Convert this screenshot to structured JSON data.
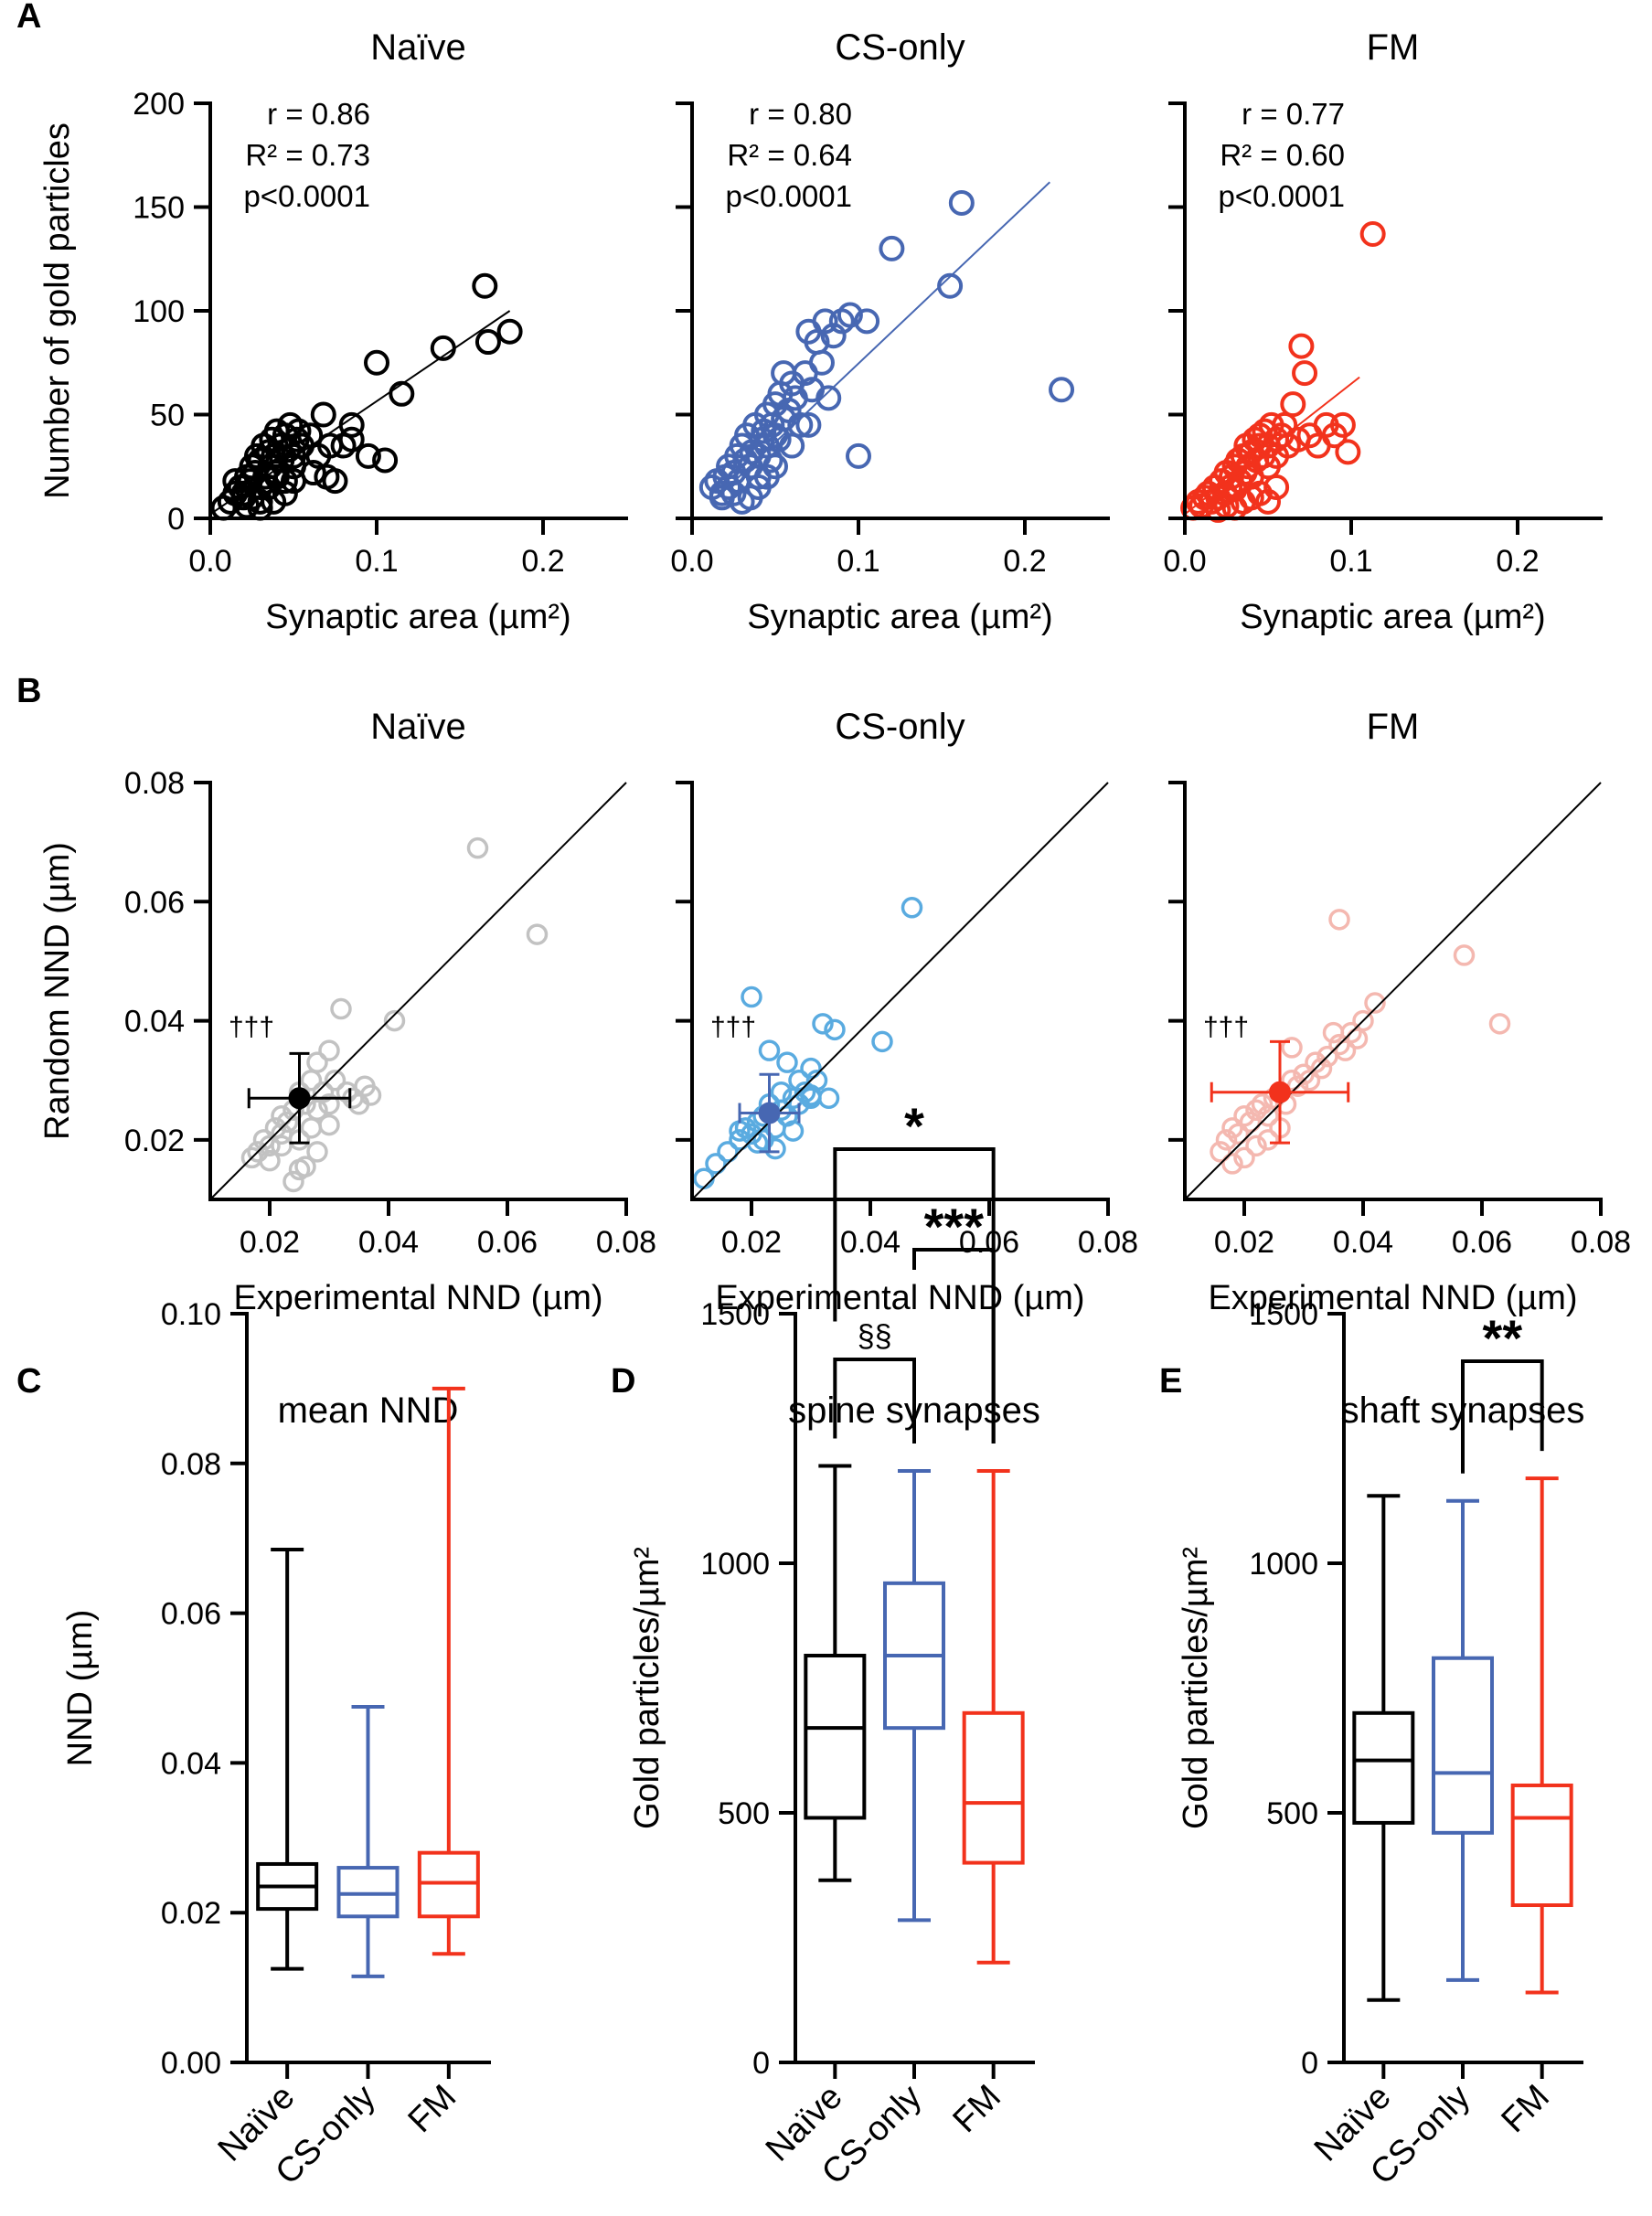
{
  "figure": {
    "panel_letters": [
      "A",
      "B",
      "C",
      "D",
      "E"
    ],
    "colors": {
      "naive": "#000000",
      "cs_only": "#4767b2",
      "fm": "#f2321c",
      "naive_light": "#c2c2c2",
      "cs_light": "#5aabe0",
      "fm_light": "#f4b8b0"
    }
  },
  "chart_data": [
    {
      "panel": "A",
      "type": "scatter",
      "title": "Naïve",
      "group": "naive",
      "xlabel": "Synaptic area (µm²)",
      "ylabel": "Number of gold particles",
      "xlim": [
        0,
        0.25
      ],
      "ylim": [
        0,
        200
      ],
      "xticks": [
        0.0,
        0.1,
        0.2
      ],
      "xtick_labels": [
        "0.0",
        "0.1",
        "0.2"
      ],
      "yticks": [
        0,
        50,
        100,
        150,
        200
      ],
      "ytick_labels": [
        "0",
        "50",
        "100",
        "150",
        "200"
      ],
      "show_ytick_labels": true,
      "stats": [
        "r = 0.86",
        "R² = 0.73",
        "p<0.0001"
      ],
      "fit": {
        "x": [
          0.0,
          0.18
        ],
        "y": [
          2,
          100
        ]
      },
      "points": {
        "x": [
          0.008,
          0.012,
          0.015,
          0.018,
          0.02,
          0.022,
          0.024,
          0.025,
          0.027,
          0.028,
          0.03,
          0.03,
          0.032,
          0.033,
          0.035,
          0.036,
          0.037,
          0.038,
          0.04,
          0.04,
          0.042,
          0.043,
          0.045,
          0.045,
          0.047,
          0.048,
          0.05,
          0.05,
          0.052,
          0.053,
          0.055,
          0.02,
          0.025,
          0.03,
          0.035,
          0.04,
          0.045,
          0.05,
          0.06,
          0.062,
          0.065,
          0.068,
          0.07,
          0.072,
          0.075,
          0.08,
          0.085,
          0.085,
          0.095,
          0.1,
          0.105,
          0.115,
          0.14,
          0.165,
          0.167,
          0.18,
          0.03,
          0.038,
          0.015,
          0.022
        ],
        "y": [
          5,
          8,
          12,
          15,
          10,
          20,
          18,
          25,
          22,
          30,
          15,
          28,
          35,
          20,
          32,
          25,
          38,
          30,
          42,
          22,
          35,
          28,
          40,
          18,
          33,
          45,
          30,
          25,
          38,
          42,
          35,
          12,
          10,
          8,
          15,
          20,
          12,
          18,
          40,
          22,
          30,
          50,
          20,
          35,
          18,
          35,
          38,
          45,
          30,
          75,
          28,
          60,
          82,
          112,
          85,
          90,
          5,
          8,
          18,
          6
        ]
      }
    },
    {
      "panel": "A",
      "type": "scatter",
      "title": "CS-only",
      "group": "cs_only",
      "xlabel": "Synaptic area (µm²)",
      "ylabel": "",
      "xlim": [
        0,
        0.25
      ],
      "ylim": [
        0,
        200
      ],
      "xticks": [
        0.0,
        0.1,
        0.2
      ],
      "xtick_labels": [
        "0.0",
        "0.1",
        "0.2"
      ],
      "yticks": [
        0,
        50,
        100,
        150,
        200
      ],
      "ytick_labels": [
        "0",
        "50",
        "100",
        "150",
        "200"
      ],
      "show_ytick_labels": false,
      "stats": [
        "r = 0.80",
        "R² = 0.64",
        "p<0.0001"
      ],
      "fit": {
        "x": [
          0.015,
          0.215
        ],
        "y": [
          10,
          162
        ]
      },
      "points": {
        "x": [
          0.012,
          0.015,
          0.018,
          0.02,
          0.022,
          0.025,
          0.027,
          0.028,
          0.03,
          0.032,
          0.033,
          0.035,
          0.036,
          0.038,
          0.04,
          0.04,
          0.042,
          0.043,
          0.045,
          0.045,
          0.047,
          0.048,
          0.05,
          0.05,
          0.052,
          0.053,
          0.055,
          0.055,
          0.058,
          0.06,
          0.062,
          0.065,
          0.068,
          0.07,
          0.072,
          0.075,
          0.078,
          0.08,
          0.082,
          0.085,
          0.09,
          0.095,
          0.1,
          0.105,
          0.12,
          0.155,
          0.162,
          0.222,
          0.018,
          0.022,
          0.025,
          0.03,
          0.035,
          0.04,
          0.045,
          0.05,
          0.06,
          0.07
        ],
        "y": [
          15,
          18,
          12,
          20,
          25,
          22,
          30,
          18,
          35,
          28,
          40,
          25,
          32,
          45,
          30,
          20,
          38,
          42,
          35,
          50,
          28,
          45,
          40,
          55,
          38,
          60,
          48,
          70,
          52,
          65,
          58,
          45,
          70,
          90,
          62,
          85,
          75,
          95,
          58,
          88,
          95,
          98,
          30,
          95,
          130,
          112,
          152,
          62,
          10,
          15,
          12,
          8,
          10,
          15,
          20,
          25,
          35,
          45
        ]
      }
    },
    {
      "panel": "A",
      "type": "scatter",
      "title": "FM",
      "group": "fm",
      "xlabel": "Synaptic area (µm²)",
      "ylabel": "",
      "xlim": [
        0,
        0.25
      ],
      "ylim": [
        0,
        200
      ],
      "xticks": [
        0.0,
        0.1,
        0.2
      ],
      "xtick_labels": [
        "0.0",
        "0.1",
        "0.2"
      ],
      "yticks": [
        0,
        50,
        100,
        150,
        200
      ],
      "ytick_labels": [
        "0",
        "50",
        "100",
        "150",
        "200"
      ],
      "show_ytick_labels": false,
      "stats": [
        "r = 0.77",
        "R² = 0.60",
        "p<0.0001"
      ],
      "fit": {
        "x": [
          0.0,
          0.105
        ],
        "y": [
          2,
          68
        ]
      },
      "points": {
        "x": [
          0.005,
          0.008,
          0.01,
          0.012,
          0.014,
          0.016,
          0.018,
          0.02,
          0.022,
          0.024,
          0.025,
          0.027,
          0.028,
          0.03,
          0.03,
          0.032,
          0.033,
          0.035,
          0.036,
          0.037,
          0.038,
          0.04,
          0.04,
          0.042,
          0.043,
          0.045,
          0.045,
          0.047,
          0.048,
          0.05,
          0.05,
          0.052,
          0.055,
          0.055,
          0.058,
          0.06,
          0.062,
          0.065,
          0.068,
          0.07,
          0.072,
          0.075,
          0.08,
          0.085,
          0.09,
          0.095,
          0.098,
          0.113,
          0.02,
          0.025,
          0.03,
          0.035,
          0.04,
          0.045,
          0.05,
          0.055
        ],
        "y": [
          5,
          8,
          6,
          10,
          12,
          8,
          15,
          10,
          18,
          12,
          22,
          15,
          20,
          25,
          14,
          28,
          18,
          30,
          22,
          35,
          25,
          32,
          20,
          38,
          28,
          35,
          40,
          30,
          42,
          35,
          25,
          45,
          38,
          30,
          40,
          45,
          35,
          55,
          38,
          83,
          70,
          40,
          35,
          45,
          40,
          45,
          32,
          137,
          4,
          6,
          5,
          8,
          10,
          12,
          8,
          15
        ]
      }
    },
    {
      "panel": "B",
      "type": "scatter",
      "title": "Naïve",
      "group": "naive",
      "xlabel": "Experimental NND (µm)",
      "ylabel": "Random NND (µm)",
      "xlim": [
        0.01,
        0.08
      ],
      "ylim": [
        0.01,
        0.08
      ],
      "xticks": [
        0.02,
        0.04,
        0.06,
        0.08
      ],
      "xtick_labels": [
        "0.02",
        "0.04",
        "0.06",
        "0.08"
      ],
      "yticks": [
        0.02,
        0.04,
        0.06,
        0.08
      ],
      "ytick_labels": [
        "0.02",
        "0.04",
        "0.06",
        "0.08"
      ],
      "show_ytick_labels": true,
      "dagger": "†††",
      "mean": {
        "x": 0.025,
        "y": 0.027,
        "xerr": 0.0085,
        "yerr": 0.0075
      },
      "identity_line": {
        "x": [
          0.01,
          0.08
        ],
        "y": [
          0.01,
          0.08
        ]
      },
      "points": {
        "x": [
          0.017,
          0.018,
          0.019,
          0.02,
          0.021,
          0.022,
          0.022,
          0.023,
          0.024,
          0.025,
          0.025,
          0.026,
          0.027,
          0.027,
          0.028,
          0.028,
          0.029,
          0.03,
          0.03,
          0.031,
          0.032,
          0.033,
          0.034,
          0.035,
          0.036,
          0.037,
          0.041,
          0.055,
          0.065,
          0.024,
          0.026,
          0.028,
          0.02,
          0.022,
          0.025,
          0.03
        ],
        "y": [
          0.017,
          0.018,
          0.02,
          0.019,
          0.022,
          0.021,
          0.024,
          0.023,
          0.025,
          0.02,
          0.028,
          0.026,
          0.022,
          0.03,
          0.025,
          0.033,
          0.028,
          0.026,
          0.035,
          0.03,
          0.042,
          0.028,
          0.027,
          0.026,
          0.029,
          0.0275,
          0.04,
          0.069,
          0.0545,
          0.013,
          0.0155,
          0.018,
          0.0165,
          0.019,
          0.015,
          0.0225
        ]
      }
    },
    {
      "panel": "B",
      "type": "scatter",
      "title": "CS-only",
      "group": "cs_only",
      "xlabel": "Experimental NND (µm)",
      "ylabel": "",
      "xlim": [
        0.01,
        0.08
      ],
      "ylim": [
        0.01,
        0.08
      ],
      "xticks": [
        0.02,
        0.04,
        0.06,
        0.08
      ],
      "xtick_labels": [
        "0.02",
        "0.04",
        "0.06",
        "0.08"
      ],
      "yticks": [
        0.02,
        0.04,
        0.06,
        0.08
      ],
      "ytick_labels": [
        "0.02",
        "0.04",
        "0.06",
        "0.08"
      ],
      "show_ytick_labels": false,
      "dagger": "†††",
      "mean": {
        "x": 0.023,
        "y": 0.0245,
        "xerr": 0.005,
        "yerr": 0.0065
      },
      "identity_line": {
        "x": [
          0.01,
          0.08
        ],
        "y": [
          0.01,
          0.08
        ]
      },
      "points": {
        "x": [
          0.012,
          0.014,
          0.016,
          0.018,
          0.019,
          0.02,
          0.021,
          0.022,
          0.022,
          0.023,
          0.024,
          0.025,
          0.025,
          0.026,
          0.027,
          0.028,
          0.028,
          0.029,
          0.03,
          0.03,
          0.031,
          0.032,
          0.033,
          0.034,
          0.042,
          0.047,
          0.02,
          0.023,
          0.026,
          0.018,
          0.021,
          0.024,
          0.027,
          0.03
        ],
        "y": [
          0.0135,
          0.016,
          0.018,
          0.02,
          0.022,
          0.021,
          0.023,
          0.024,
          0.02,
          0.026,
          0.022,
          0.025,
          0.028,
          0.024,
          0.027,
          0.026,
          0.03,
          0.028,
          0.027,
          0.032,
          0.03,
          0.0395,
          0.027,
          0.0385,
          0.0365,
          0.059,
          0.044,
          0.035,
          0.033,
          0.0215,
          0.0195,
          0.0185,
          0.0215,
          0.0275
        ]
      }
    },
    {
      "panel": "B",
      "type": "scatter",
      "title": "FM",
      "group": "fm",
      "xlabel": "Experimental NND (µm)",
      "ylabel": "",
      "xlim": [
        0.01,
        0.08
      ],
      "ylim": [
        0.01,
        0.08
      ],
      "xticks": [
        0.02,
        0.04,
        0.06,
        0.08
      ],
      "xtick_labels": [
        "0.02",
        "0.04",
        "0.06",
        "0.08"
      ],
      "yticks": [
        0.02,
        0.04,
        0.06,
        0.08
      ],
      "ytick_labels": [
        "0.02",
        "0.04",
        "0.06",
        "0.08"
      ],
      "show_ytick_labels": false,
      "dagger": "†††",
      "mean": {
        "x": 0.026,
        "y": 0.028,
        "xerr": 0.0115,
        "yerr": 0.0085
      },
      "identity_line": {
        "x": [
          0.01,
          0.08
        ],
        "y": [
          0.01,
          0.08
        ]
      },
      "points": {
        "x": [
          0.016,
          0.017,
          0.018,
          0.019,
          0.02,
          0.021,
          0.022,
          0.023,
          0.024,
          0.025,
          0.026,
          0.027,
          0.028,
          0.029,
          0.03,
          0.031,
          0.032,
          0.033,
          0.034,
          0.035,
          0.036,
          0.037,
          0.038,
          0.039,
          0.04,
          0.042,
          0.036,
          0.057,
          0.063,
          0.018,
          0.02,
          0.022,
          0.024,
          0.026,
          0.028
        ],
        "y": [
          0.018,
          0.02,
          0.022,
          0.021,
          0.024,
          0.023,
          0.025,
          0.026,
          0.024,
          0.027,
          0.028,
          0.026,
          0.03,
          0.029,
          0.031,
          0.03,
          0.033,
          0.032,
          0.034,
          0.038,
          0.036,
          0.035,
          0.038,
          0.037,
          0.04,
          0.043,
          0.057,
          0.051,
          0.0395,
          0.016,
          0.017,
          0.019,
          0.02,
          0.022,
          0.0355
        ]
      }
    },
    {
      "panel": "C",
      "type": "box",
      "title": "mean NND",
      "ylabel": "NND (µm)",
      "ylim": [
        0,
        0.1
      ],
      "yticks": [
        0,
        0.02,
        0.04,
        0.06,
        0.08,
        0.1
      ],
      "ytick_labels": [
        "0.00",
        "0.02",
        "0.04",
        "0.06",
        "0.08",
        "0.10"
      ],
      "categories": [
        "Naïve",
        "CS-only",
        "FM"
      ],
      "groups": [
        "naive",
        "cs_only",
        "fm"
      ],
      "boxes": [
        {
          "min": 0.0125,
          "q1": 0.0205,
          "median": 0.0235,
          "q3": 0.0265,
          "max": 0.0685
        },
        {
          "min": 0.0115,
          "q1": 0.0195,
          "median": 0.0225,
          "q3": 0.026,
          "max": 0.0475
        },
        {
          "min": 0.0145,
          "q1": 0.0195,
          "median": 0.024,
          "q3": 0.028,
          "max": 0.09
        }
      ],
      "brackets": []
    },
    {
      "panel": "D",
      "type": "box",
      "title": "spine synapses",
      "ylabel": "Gold particles/µm²",
      "ylim": [
        0,
        1500
      ],
      "yticks": [
        0,
        500,
        1000,
        1500
      ],
      "ytick_labels": [
        "0",
        "500",
        "1000",
        "1500"
      ],
      "categories": [
        "Naïve",
        "CS-only",
        "FM"
      ],
      "groups": [
        "naive",
        "cs_only",
        "fm"
      ],
      "boxes": [
        {
          "min": 365,
          "q1": 490,
          "median": 670,
          "q3": 815,
          "max": 1195
        },
        {
          "min": 285,
          "q1": 670,
          "median": 815,
          "q3": 960,
          "max": 1185
        },
        {
          "min": 200,
          "q1": 400,
          "median": 520,
          "q3": 700,
          "max": 1185
        }
      ],
      "brackets": [
        {
          "from": 0,
          "to": 2,
          "label": "*",
          "level": 3,
          "kind": "star"
        },
        {
          "from": 1,
          "to": 2,
          "label": "***",
          "level": 2,
          "kind": "star"
        },
        {
          "from": 0,
          "to": 1,
          "label": "§§",
          "level": 1,
          "kind": "text"
        }
      ]
    },
    {
      "panel": "E",
      "type": "box",
      "title": "shaft synapses",
      "ylabel": "Gold particles/µm²",
      "ylim": [
        0,
        1500
      ],
      "yticks": [
        0,
        500,
        1000,
        1500
      ],
      "ytick_labels": [
        "0",
        "500",
        "1000",
        "1500"
      ],
      "categories": [
        "Naïve",
        "CS-only",
        "FM"
      ],
      "groups": [
        "naive",
        "cs_only",
        "fm"
      ],
      "boxes": [
        {
          "min": 125,
          "q1": 480,
          "median": 605,
          "q3": 700,
          "max": 1135
        },
        {
          "min": 165,
          "q1": 460,
          "median": 580,
          "q3": 810,
          "max": 1125
        },
        {
          "min": 140,
          "q1": 315,
          "median": 490,
          "q3": 555,
          "max": 1170
        }
      ],
      "brackets": [
        {
          "from": 1,
          "to": 2,
          "label": "**",
          "level": 1,
          "kind": "star"
        }
      ]
    }
  ]
}
